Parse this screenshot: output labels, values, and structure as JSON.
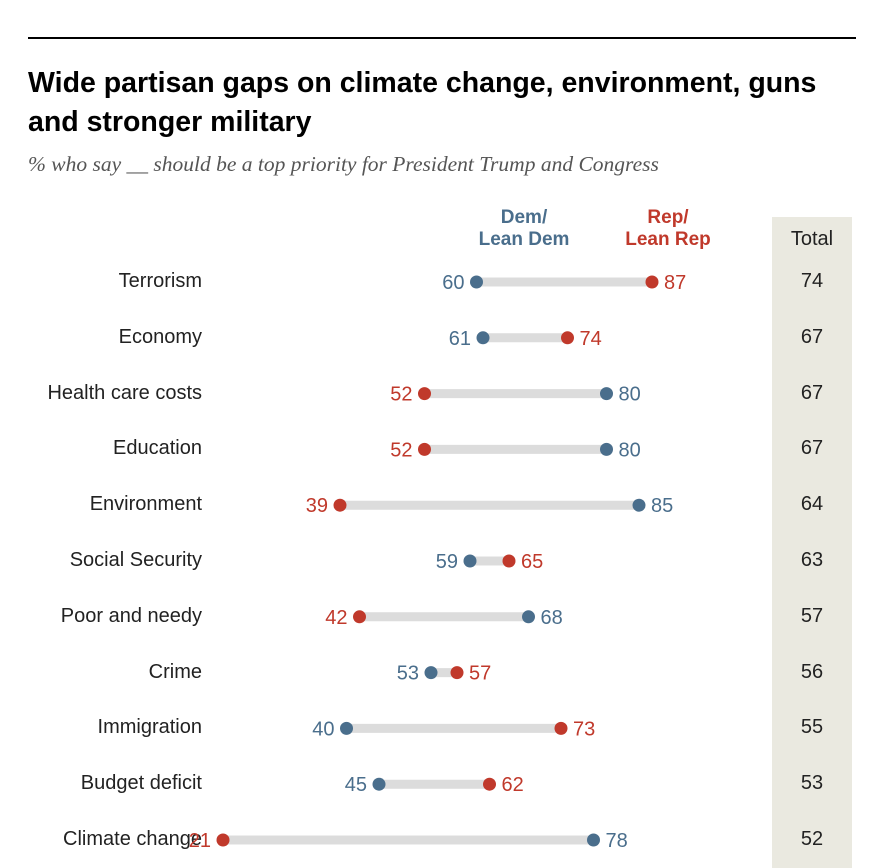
{
  "header": {
    "title": "Wide partisan gaps on climate change, environment, guns and stronger military",
    "subtitle": "% who say __ should be a top priority for President Trump and Congress"
  },
  "legend": {
    "dem": "Dem/\nLean Dem",
    "rep": "Rep/\nLean Rep"
  },
  "colors": {
    "dem": "#4a6e8c",
    "rep": "#c0392b",
    "connector": "#dcdcdc",
    "total_column": "#eae9e0"
  },
  "total_header": "Total",
  "chart_data": {
    "type": "dot",
    "categories": [
      "Terrorism",
      "Economy",
      "Health care costs",
      "Education",
      "Environment",
      "Social Security",
      "Poor and needy",
      "Crime",
      "Immigration",
      "Budget deficit",
      "Climate change"
    ],
    "series": [
      {
        "name": "Dem/Lean Dem",
        "values": [
          60,
          61,
          80,
          80,
          85,
          59,
          68,
          53,
          40,
          45,
          78
        ]
      },
      {
        "name": "Rep/Lean Rep",
        "values": [
          87,
          74,
          52,
          52,
          39,
          65,
          42,
          57,
          73,
          62,
          21
        ]
      }
    ],
    "total": [
      74,
      67,
      67,
      67,
      64,
      63,
      57,
      56,
      55,
      53,
      52
    ],
    "total_label": "Total",
    "title": "Wide partisan gaps on climate change, environment, guns and stronger military",
    "subtitle": "% who say __ should be a top priority for President Trump and Congress",
    "grid": false
  }
}
